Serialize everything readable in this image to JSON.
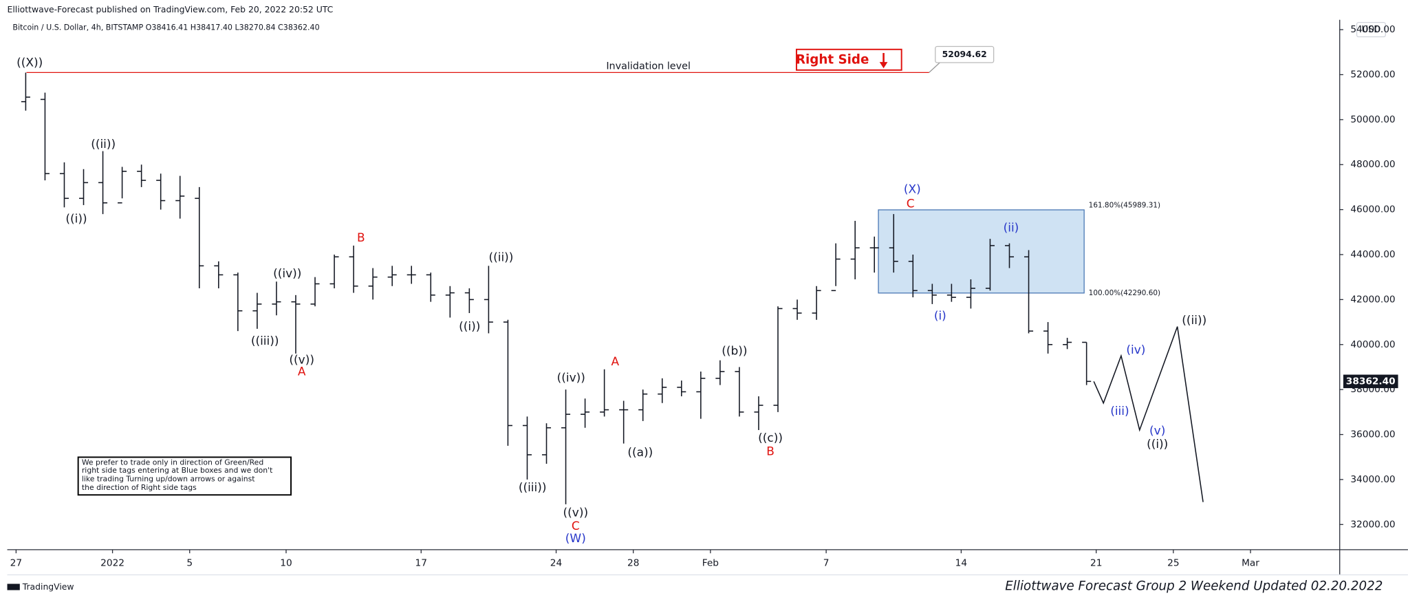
{
  "header": "Elliottwave-Forecast published on TradingView.com, Feb 20, 2022 20:52 UTC",
  "symbol_line": "Bitcoin / U.S. Dollar, 4h, BITSTAMP  O38416.41  H38417.40  L38270.84  C38362.40",
  "currency": "USD",
  "footer_brand": "TradingView",
  "footer_note": "Elliottwave Forecast Group 2 Weekend Updated 02.20.2022",
  "note": [
    "We prefer to trade only in direction of Green/Red",
    "right side tags entering at Blue boxes and we don't",
    "like trading Turning up/down arrows or against",
    "the direction of Right side tags"
  ],
  "chart_data": {
    "type": "ohlc",
    "x": [
      "2021-12-27",
      "2021-12-28",
      "2021-12-29",
      "2021-12-30",
      "2021-12-31",
      "2022-01-01",
      "2022-01-02",
      "2022-01-03",
      "2022-01-04",
      "2022-01-05",
      "2022-01-06",
      "2022-01-07",
      "2022-01-08",
      "2022-01-09",
      "2022-01-10",
      "2022-01-11",
      "2022-01-12",
      "2022-01-13",
      "2022-01-14",
      "2022-01-15",
      "2022-01-16",
      "2022-01-17",
      "2022-01-18",
      "2022-01-19",
      "2022-01-20",
      "2022-01-21",
      "2022-01-22",
      "2022-01-23",
      "2022-01-24",
      "2022-01-25",
      "2022-01-26",
      "2022-01-27",
      "2022-01-28",
      "2022-01-29",
      "2022-01-30",
      "2022-01-31",
      "2022-02-01",
      "2022-02-02",
      "2022-02-03",
      "2022-02-04",
      "2022-02-05",
      "2022-02-06",
      "2022-02-07",
      "2022-02-08",
      "2022-02-09",
      "2022-02-10",
      "2022-02-11",
      "2022-02-12",
      "2022-02-13",
      "2022-02-14",
      "2022-02-15",
      "2022-02-16",
      "2022-02-17",
      "2022-02-18",
      "2022-02-19",
      "2022-02-20"
    ],
    "open": [
      50800,
      50900,
      47600,
      46500,
      47200,
      46300,
      47700,
      47300,
      46400,
      46500,
      43500,
      43100,
      41500,
      41800,
      41900,
      41800,
      42700,
      43900,
      42600,
      43000,
      43100,
      43100,
      42200,
      42300,
      42000,
      41000,
      36400,
      35100,
      36300,
      36900,
      37000,
      37100,
      37100,
      37800,
      38100,
      37900,
      38500,
      38800,
      37000,
      37300,
      41600,
      41400,
      42400,
      43800,
      44300,
      44300,
      43700,
      42400,
      42200,
      42100,
      42500,
      44400,
      43900,
      40600,
      40000,
      40100
    ],
    "high": [
      52090,
      51200,
      48100,
      47800,
      48600,
      47900,
      48000,
      47600,
      47500,
      47000,
      43700,
      43200,
      42300,
      42800,
      42200,
      43000,
      44000,
      44400,
      43400,
      43500,
      43500,
      43200,
      42600,
      42500,
      43500,
      41100,
      36800,
      36500,
      38000,
      37600,
      38900,
      37500,
      38000,
      38500,
      38400,
      38800,
      39300,
      39000,
      37700,
      41700,
      42000,
      42600,
      44500,
      45500,
      44800,
      45800,
      44000,
      42700,
      42700,
      42900,
      44700,
      44500,
      44200,
      41000,
      40300,
      40100
    ],
    "low": [
      50400,
      47300,
      46100,
      46200,
      45800,
      46500,
      47000,
      46000,
      45600,
      42500,
      42500,
      40600,
      40700,
      41300,
      39600,
      41700,
      42500,
      42300,
      42000,
      42600,
      42700,
      41900,
      41200,
      41400,
      40500,
      35500,
      34000,
      34700,
      32900,
      36300,
      36800,
      35600,
      36600,
      37400,
      37700,
      36700,
      38200,
      36800,
      36200,
      37000,
      41100,
      41100,
      42600,
      42900,
      43200,
      43200,
      42100,
      41800,
      41900,
      41600,
      42400,
      43400,
      40500,
      39600,
      39800,
      38200
    ],
    "close": [
      51000,
      47600,
      46500,
      47200,
      46300,
      47700,
      47300,
      46400,
      46600,
      43500,
      43100,
      41500,
      41800,
      41900,
      41800,
      42700,
      43900,
      42600,
      43000,
      43100,
      43100,
      42200,
      42300,
      42000,
      41000,
      36400,
      35100,
      36300,
      36900,
      37000,
      37100,
      37100,
      37800,
      38100,
      37900,
      38500,
      38800,
      37000,
      37300,
      41600,
      41400,
      42400,
      43800,
      44300,
      44300,
      43700,
      42400,
      42200,
      42100,
      42500,
      44400,
      43900,
      40600,
      40000,
      40100,
      38362.4
    ],
    "color": "#131722",
    "xlim": [
      "2021-12-26T13:00",
      "2022-03-05T15:00"
    ],
    "xticks": [
      {
        "value": "2021-12-27",
        "label": "27"
      },
      {
        "value": "2022-01-01",
        "label": "2022"
      },
      {
        "value": "2022-01-05",
        "label": "5"
      },
      {
        "value": "2022-01-10",
        "label": "10"
      },
      {
        "value": "2022-01-17",
        "label": "17"
      },
      {
        "value": "2022-01-24",
        "label": "24"
      },
      {
        "value": "2022-01-28",
        "label": "28"
      },
      {
        "value": "2022-02-01",
        "label": "Feb"
      },
      {
        "value": "2022-02-07",
        "label": "7"
      },
      {
        "value": "2022-02-14",
        "label": "14"
      },
      {
        "value": "2022-02-21",
        "label": "21"
      },
      {
        "value": "2022-02-25",
        "label": "25"
      },
      {
        "value": "2022-03-01",
        "label": "Mar"
      }
    ],
    "ylim": [
      30880,
      54440
    ],
    "yticks": [
      {
        "value": 32000,
        "label": "32000.00"
      },
      {
        "value": 34000,
        "label": "34000.00"
      },
      {
        "value": 36000,
        "label": "36000.00"
      },
      {
        "value": 38000,
        "label": "38000.00"
      },
      {
        "value": 40000,
        "label": "40000.00"
      },
      {
        "value": 42000,
        "label": "42000.00"
      },
      {
        "value": 44000,
        "label": "44000.00"
      },
      {
        "value": 46000,
        "label": "46000.00"
      },
      {
        "value": 48000,
        "label": "48000.00"
      },
      {
        "value": 50000,
        "label": "50000.00"
      },
      {
        "value": 52000,
        "label": "52000.00"
      },
      {
        "value": 54000,
        "label": "54000.00"
      }
    ],
    "grid": false,
    "last_price": {
      "value": 38362.4,
      "label": "38362.40"
    },
    "projection": {
      "x": [
        "2022-02-20T21:00",
        "2022-02-21T09:00",
        "2022-02-22T07:00",
        "2022-02-23T06:00",
        "2022-02-25T05:00",
        "2022-02-26T13:00"
      ],
      "values": [
        38362.4,
        37400,
        39500,
        36200,
        40800,
        33000
      ],
      "color": "#131722"
    },
    "invalidation": {
      "value": 52094.62,
      "text": "Invalidation level",
      "x": [
        "2021-12-27T13:00",
        "2022-02-12T08:00"
      ],
      "color": "#e0120e"
    },
    "right_side": "Right Side",
    "fib_box": {
      "x": [
        "2022-02-09T17:00",
        "2022-02-20T09:00"
      ],
      "upper": {
        "value": 45989.31,
        "label": "161.80%(45989.31)"
      },
      "lower": {
        "value": 42290.6,
        "label": "100.00%(42290.60)"
      },
      "color": "#cfe2f3"
    },
    "annotations": [
      {
        "text": "((X))",
        "color": "#131722"
      },
      {
        "text": "((i))",
        "color": "#131722"
      },
      {
        "text": "((ii))",
        "color": "#131722"
      },
      {
        "text": "((iii))",
        "color": "#131722"
      },
      {
        "text": "((iv))",
        "color": "#131722"
      },
      {
        "text": "((v))",
        "color": "#131722"
      },
      {
        "text": "A",
        "color": "#e0120e"
      },
      {
        "text": "B",
        "color": "#e0120e"
      },
      {
        "text": "((i))",
        "color": "#131722"
      },
      {
        "text": "((ii))",
        "color": "#131722"
      },
      {
        "text": "((iii))",
        "color": "#131722"
      },
      {
        "text": "((iv))",
        "color": "#131722"
      },
      {
        "text": "((v))",
        "color": "#131722"
      },
      {
        "text": "C",
        "color": "#e0120e"
      },
      {
        "text": "(W)",
        "color": "#2636c9"
      },
      {
        "text": "A",
        "color": "#e0120e"
      },
      {
        "text": "((a))",
        "color": "#131722"
      },
      {
        "text": "((b))",
        "color": "#131722"
      },
      {
        "text": "((c))",
        "color": "#131722"
      },
      {
        "text": "B",
        "color": "#e0120e"
      },
      {
        "text": "(X)",
        "color": "#2636c9"
      },
      {
        "text": "C",
        "color": "#e0120e"
      },
      {
        "text": "(i)",
        "color": "#2636c9"
      },
      {
        "text": "(ii)",
        "color": "#2636c9"
      },
      {
        "text": "(iii)",
        "color": "#2636c9"
      },
      {
        "text": "(iv)",
        "color": "#2636c9"
      },
      {
        "text": "(v)",
        "color": "#2636c9"
      },
      {
        "text": "((i))",
        "color": "#131722"
      },
      {
        "text": "((ii))",
        "color": "#131722"
      }
    ]
  }
}
